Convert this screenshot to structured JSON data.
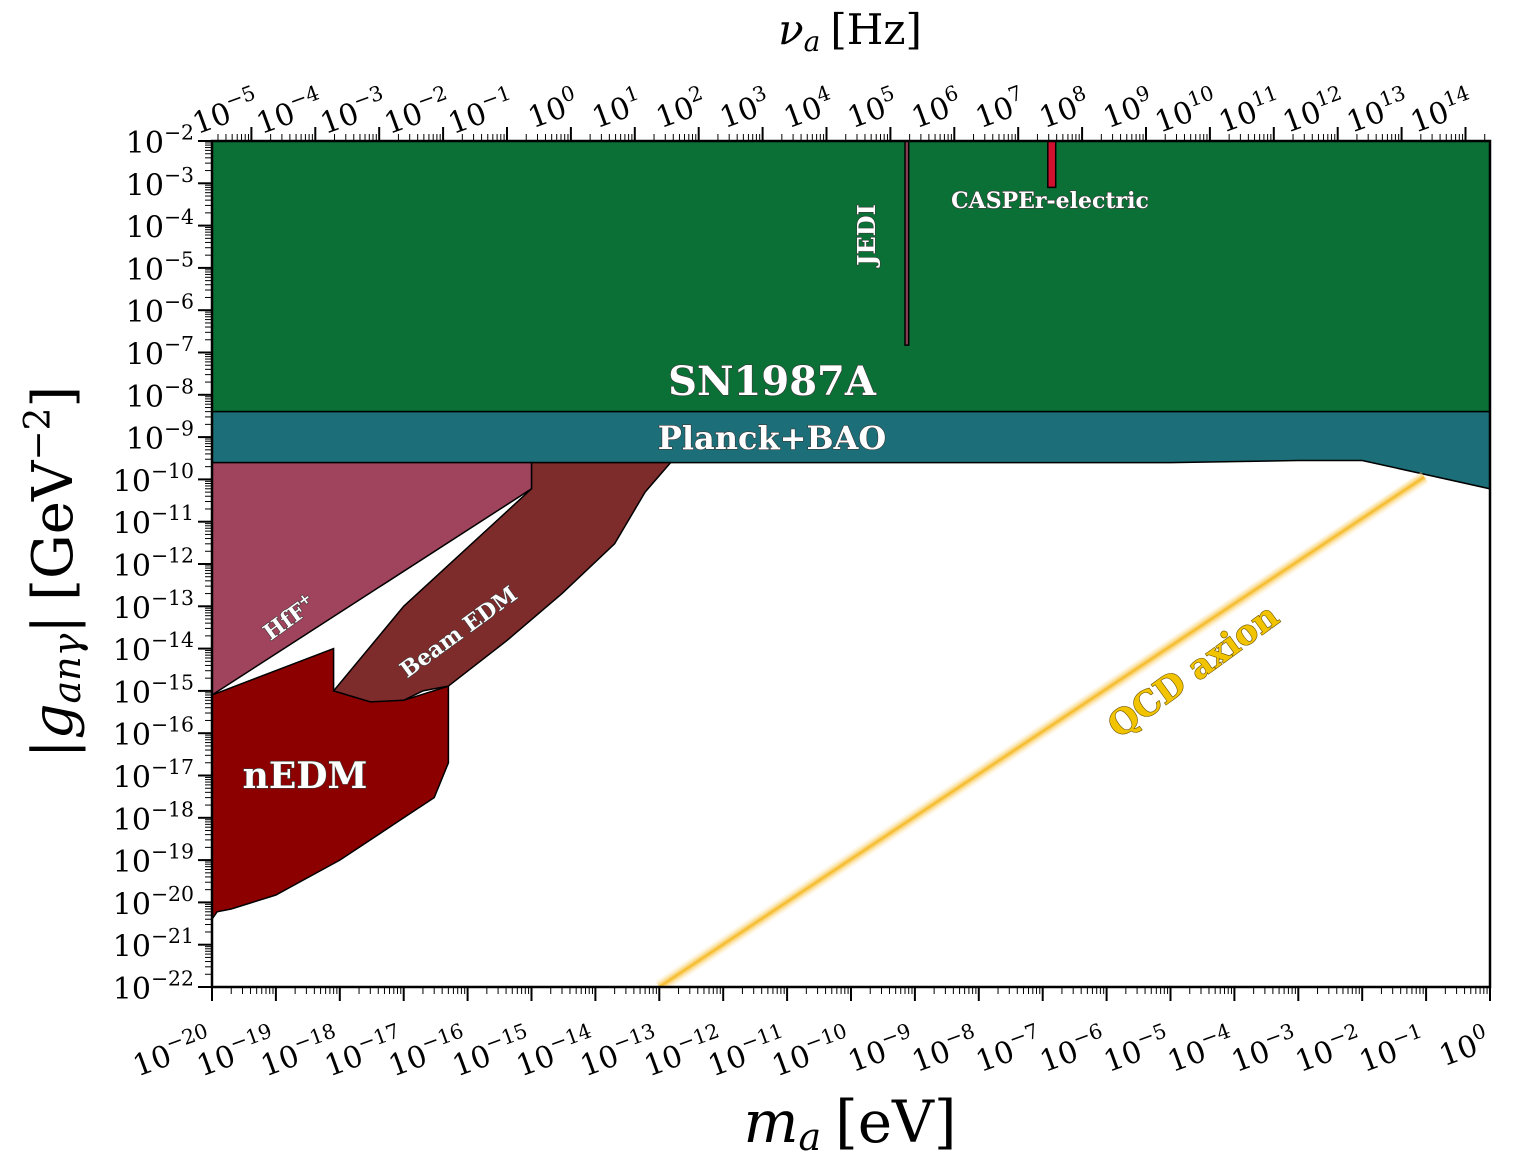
{
  "chart_data": {
    "type": "area",
    "x_axis": {
      "label_var": "m",
      "label_sub": "a",
      "label_unit": "[eV]",
      "scale": "log",
      "range": [
        1e-20,
        1
      ],
      "tick_exponents": [
        -20,
        -19,
        -18,
        -17,
        -16,
        -15,
        -14,
        -13,
        -12,
        -11,
        -10,
        -9,
        -8,
        -7,
        -6,
        -5,
        -4,
        -3,
        -2,
        -1,
        0
      ]
    },
    "top_axis": {
      "label_var": "ν",
      "label_sub": "a",
      "label_unit": "[Hz]",
      "scale": "log",
      "tick_exponents": [
        -5,
        -4,
        -3,
        -2,
        -1,
        0,
        1,
        2,
        3,
        4,
        5,
        6,
        7,
        8,
        9,
        10,
        11,
        12,
        13,
        14
      ]
    },
    "y_axis": {
      "label_open": "|",
      "label_var": "g",
      "label_sub": "anγ",
      "label_close": "|",
      "label_unit_open": "[GeV",
      "label_unit_exp": "−2",
      "label_unit_close": "]",
      "scale": "log",
      "range": [
        1e-22,
        0.01
      ],
      "tick_exponents": [
        -2,
        -3,
        -4,
        -5,
        -6,
        -7,
        -8,
        -9,
        -10,
        -11,
        -12,
        -13,
        -14,
        -15,
        -16,
        -17,
        -18,
        -19,
        -20,
        -21,
        -22
      ]
    },
    "regions": [
      {
        "name": "SN1987A",
        "color": "#0a7035",
        "x": [
          1e-20,
          1
        ],
        "y_lower": [
          4e-09,
          4e-09
        ],
        "y_upper": [
          0.01,
          0.01
        ]
      },
      {
        "name": "Planck+BAO",
        "color": "#1c6e78",
        "x": [
          1e-20,
          1e-13,
          1e-05,
          0.001,
          0.01,
          0.1,
          1
        ],
        "y_lower": [
          2.5e-10,
          2.5e-10,
          2.5e-10,
          2.8e-10,
          2.8e-10,
          1.3e-10,
          6e-11
        ],
        "y_upper": [
          4e-09,
          4e-09,
          4e-09,
          4e-09,
          4e-09,
          4e-09,
          4e-09
        ]
      },
      {
        "name": "Beam EDM",
        "color": "#7e2b2b",
        "points": [
          [
            1e-15,
            2.5e-10
          ],
          [
            1.5e-13,
            2.5e-10
          ],
          [
            6e-14,
            5e-11
          ],
          [
            2e-14,
            3e-12
          ],
          [
            3e-15,
            2e-13
          ],
          [
            4e-16,
            1.5e-14
          ],
          [
            5e-17,
            1.3e-15
          ],
          [
            2e-17,
            1e-15
          ],
          [
            1e-17,
            6e-16
          ],
          [
            3e-18,
            5e-16
          ],
          [
            8e-19,
            5.5e-16
          ],
          [
            8e-19,
            1e-15
          ],
          [
            1e-17,
            1e-13
          ],
          [
            1e-15,
            6e-11
          ]
        ]
      },
      {
        "name": "HfF+",
        "color": "#a0435c",
        "points": [
          [
            1e-20,
            2.5e-10
          ],
          [
            1e-15,
            2.5e-10
          ],
          [
            1e-15,
            6e-11
          ],
          [
            1e-20,
            8e-16
          ]
        ]
      },
      {
        "name": "nEDM",
        "color": "#8c0000",
        "points": [
          [
            1e-20,
            8e-16
          ],
          [
            8e-19,
            1e-14
          ],
          [
            8e-19,
            1e-15
          ],
          [
            3e-18,
            5.5e-16
          ],
          [
            1e-17,
            6e-16
          ],
          [
            5e-17,
            1.3e-15
          ],
          [
            5e-17,
            2e-17
          ],
          [
            3e-17,
            3e-18
          ],
          [
            1e-17,
            1e-18
          ],
          [
            1e-18,
            1e-19
          ],
          [
            1e-19,
            1.5e-20
          ],
          [
            2e-20,
            7e-21
          ],
          [
            1.2e-20,
            6e-21
          ],
          [
            1e-20,
            4e-21
          ]
        ]
      },
      {
        "name": "JEDI",
        "color": "#8a4052",
        "x": [
          7e-10,
          8e-10
        ],
        "y_lower": [
          1.5e-07,
          1.5e-07
        ],
        "y_upper": [
          0.01,
          0.01
        ]
      },
      {
        "name": "CASPEr-electric",
        "color": "#d0102e",
        "x": [
          1.2e-07,
          1.6e-07
        ],
        "y_lower": [
          0.0008,
          0.0008
        ],
        "y_upper": [
          0.01,
          0.01
        ]
      }
    ],
    "band": {
      "name": "QCD axion",
      "color": "#f5b820",
      "x": [
        1e-13,
        0.1
      ],
      "y": [
        1e-22,
        1e-10
      ]
    },
    "labels": {
      "sn": "SN1987A",
      "planck": "Planck+BAO",
      "jedi": "JEDI",
      "casper": "CASPEr-electric",
      "hff": "HfF",
      "hff_sup": "+",
      "beam": "Beam EDM",
      "nedm": "nEDM",
      "qcd": "QCD axion"
    }
  }
}
